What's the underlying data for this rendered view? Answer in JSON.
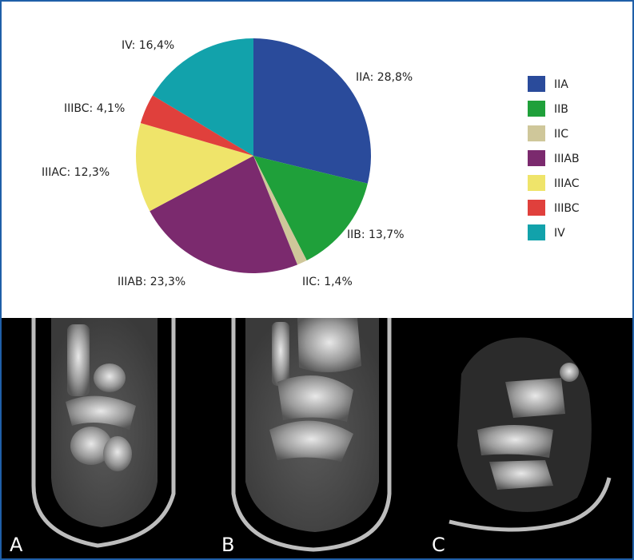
{
  "chart_data": {
    "type": "pie",
    "categories": [
      "IIA",
      "IIB",
      "IIC",
      "IIIAB",
      "IIIAC",
      "IIIBC",
      "IV"
    ],
    "values": [
      28.8,
      13.7,
      1.4,
      23.3,
      12.3,
      4.1,
      16.4
    ],
    "labels": [
      "IIA: 28,8%",
      "IIB: 13,7%",
      "IIC: 1,4%",
      "IIIAB: 23,3%",
      "IIIAC: 12,3%",
      "IIIBC: 4,1%",
      "IV: 16,4%"
    ],
    "colors": [
      "#2a4b9b",
      "#1fa03a",
      "#cfc79a",
      "#7b2a6e",
      "#efe46a",
      "#e0403c",
      "#12a2ab"
    ],
    "legend": "right",
    "start_angle": "top",
    "direction": "clockwise"
  },
  "scan_panels": {
    "labels": [
      "A",
      "B",
      "C"
    ],
    "description_icons": [
      "ct-scan-coronal-image",
      "ct-scan-coronal-image",
      "ct-scan-axial-image"
    ]
  }
}
